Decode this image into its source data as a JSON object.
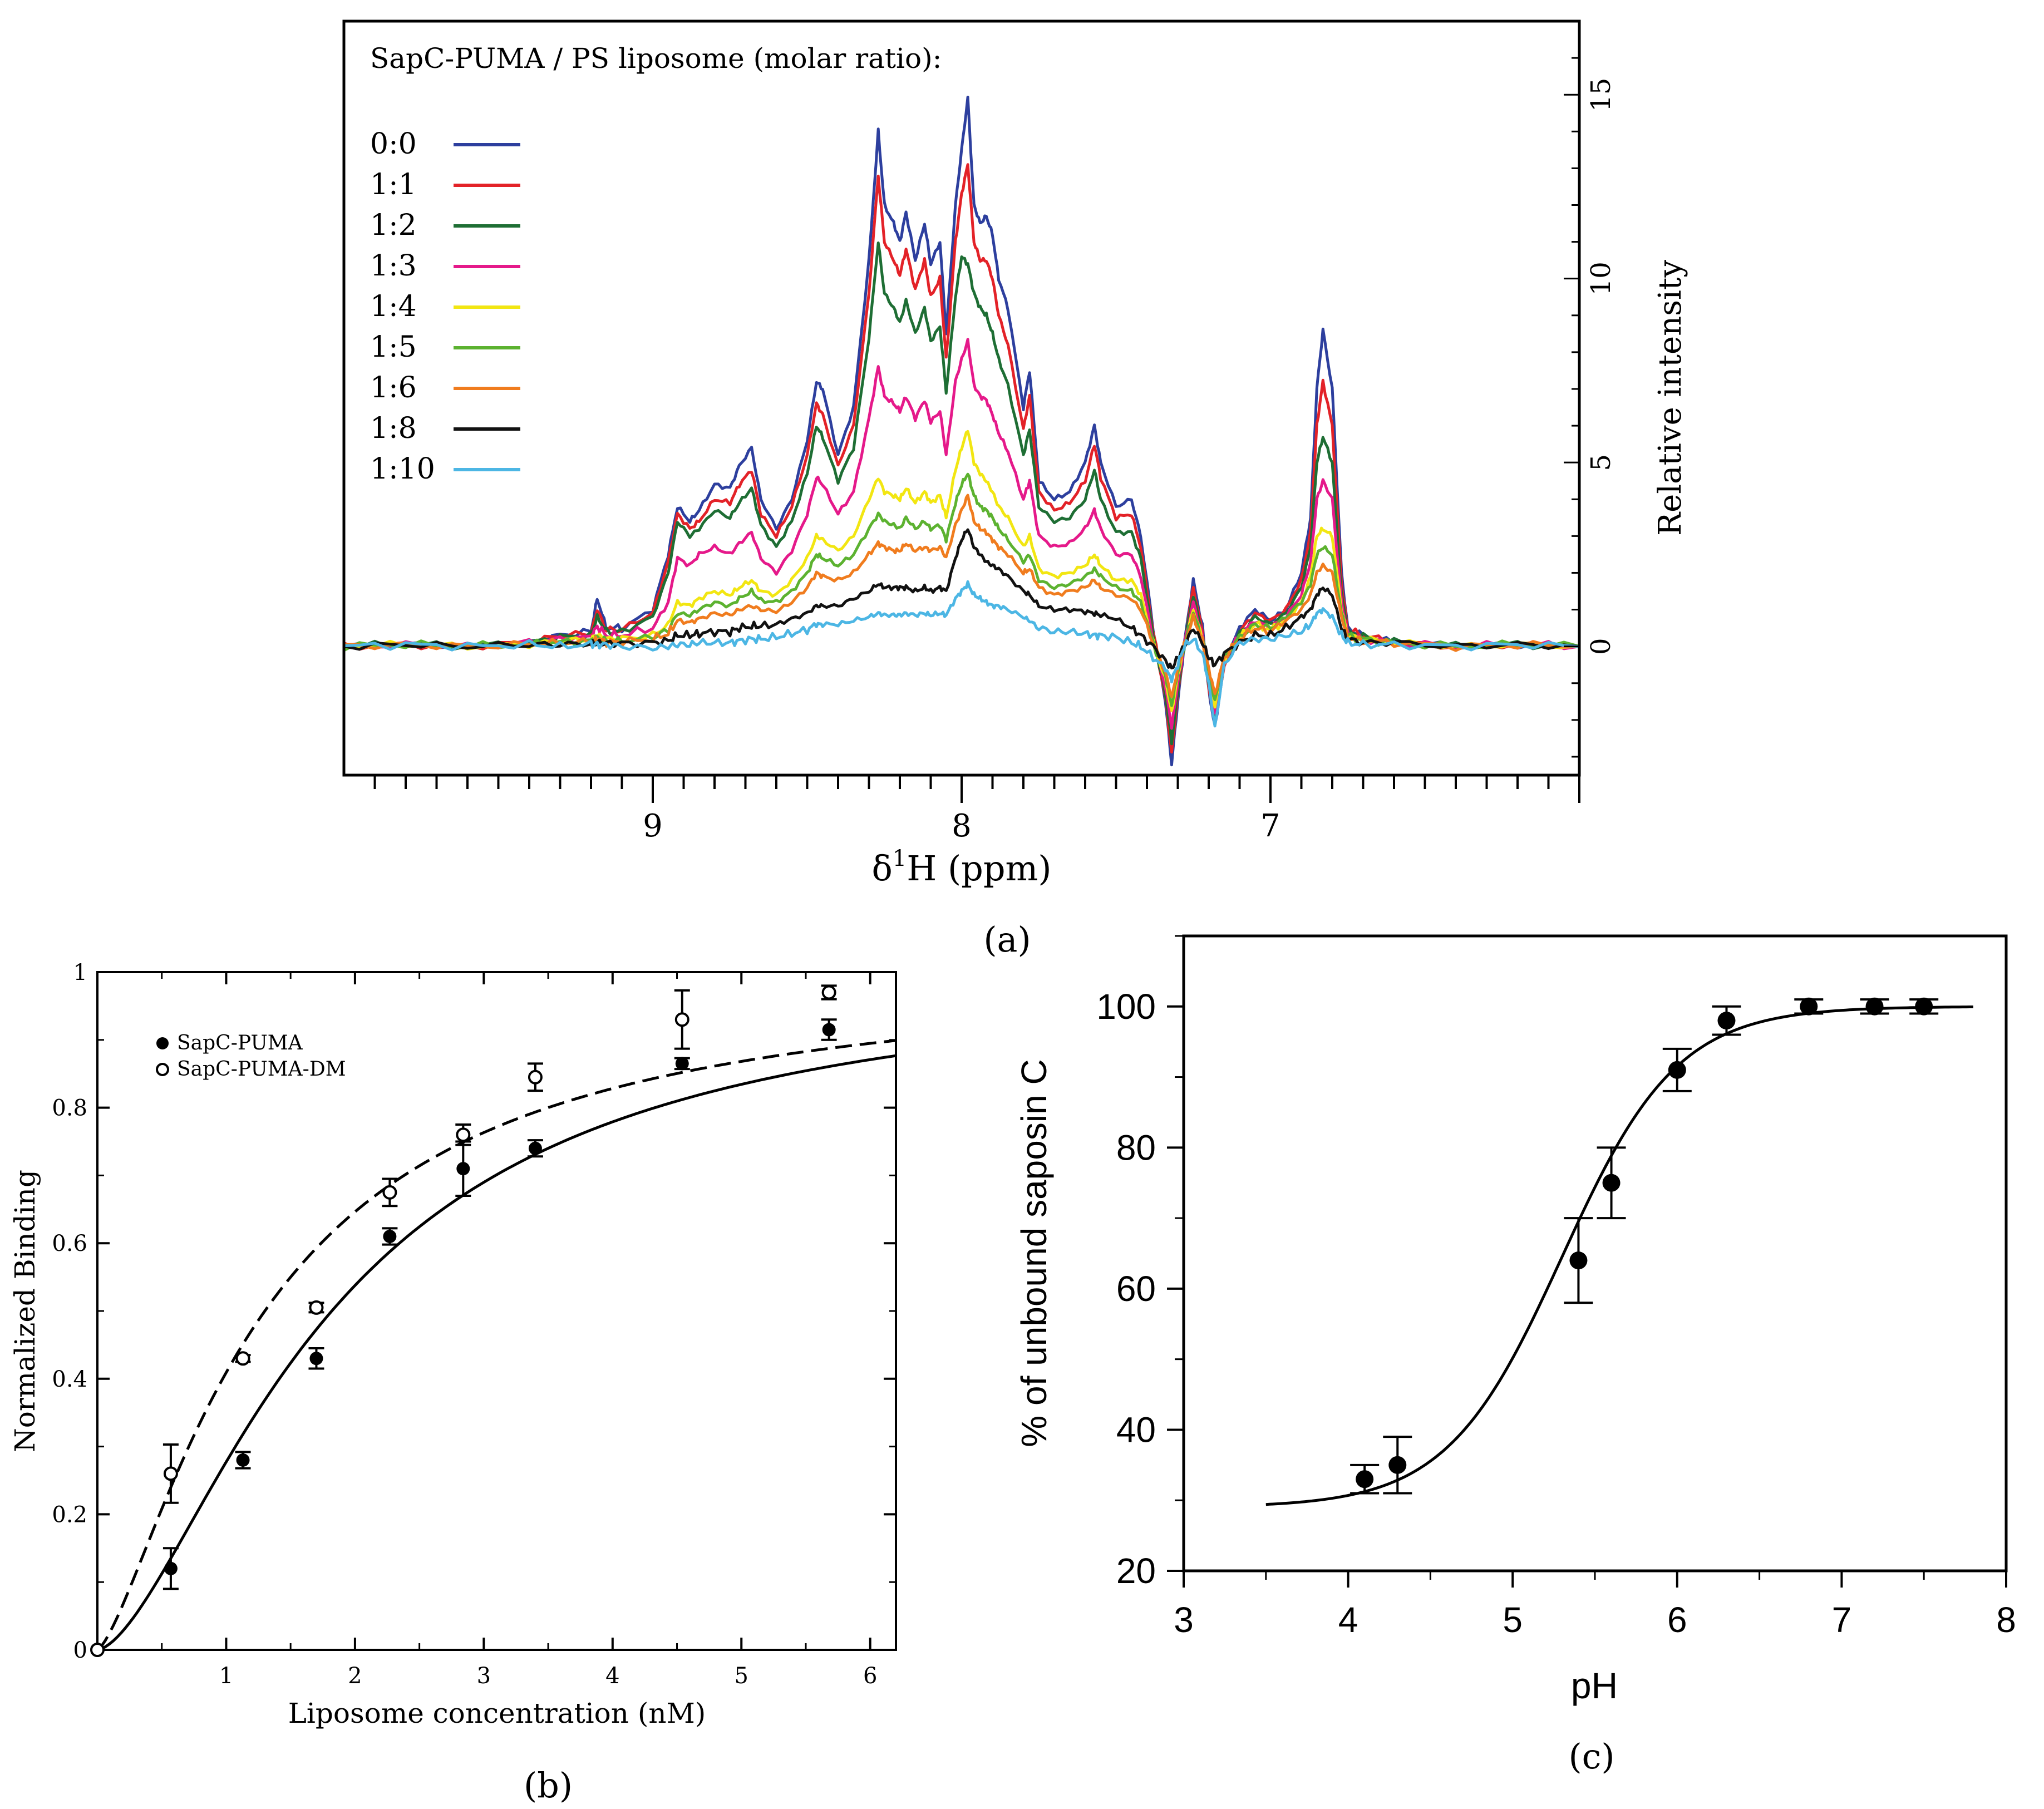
{
  "panel_a": {
    "caption": "(a)",
    "legend_title": "SapC-PUMA /  PS liposome (molar ratio):",
    "chart_data": {
      "type": "line",
      "xlabel_main": "δ",
      "xlabel_sup": "1",
      "xlabel_rest": "H (ppm)",
      "ylabel": "Relative intensity",
      "xlim": [
        10.0,
        6.0
      ],
      "ylim": [
        -3.5,
        17.0
      ],
      "xticks": [
        9,
        8,
        7
      ],
      "yticks": [
        0,
        5,
        10,
        15
      ],
      "x": [
        10.0,
        9.8,
        9.6,
        9.4,
        9.3,
        9.2,
        9.18,
        9.15,
        9.1,
        9.0,
        8.95,
        8.92,
        8.88,
        8.85,
        8.8,
        8.75,
        8.72,
        8.68,
        8.65,
        8.6,
        8.55,
        8.5,
        8.47,
        8.45,
        8.4,
        8.35,
        8.3,
        8.27,
        8.25,
        8.22,
        8.2,
        8.18,
        8.15,
        8.12,
        8.1,
        8.07,
        8.05,
        8.02,
        8.0,
        7.98,
        7.96,
        7.94,
        7.92,
        7.9,
        7.88,
        7.85,
        7.8,
        7.78,
        7.75,
        7.7,
        7.65,
        7.6,
        7.57,
        7.55,
        7.5,
        7.45,
        7.42,
        7.38,
        7.34,
        7.32,
        7.3,
        7.28,
        7.25,
        7.22,
        7.2,
        7.18,
        7.15,
        7.1,
        7.05,
        7.0,
        6.95,
        6.9,
        6.87,
        6.85,
        6.83,
        6.8,
        6.77,
        6.75,
        6.7,
        6.6,
        6.4,
        6.2,
        6.0
      ],
      "series": [
        {
          "name": "0:0",
          "color": "#2d3f9e",
          "values": [
            0,
            0.05,
            0,
            0.1,
            0.3,
            0.4,
            1.3,
            0.5,
            0.5,
            1.0,
            2.5,
            3.8,
            3.4,
            3.7,
            4.4,
            4.3,
            4.9,
            5.4,
            4.0,
            3.2,
            4.0,
            5.6,
            7.2,
            7.0,
            5.2,
            6.5,
            10.5,
            14.0,
            12.0,
            11.5,
            11.0,
            11.8,
            10.5,
            11.5,
            10.4,
            11.0,
            8.5,
            12.0,
            13.5,
            14.9,
            12.0,
            11.5,
            11.7,
            11.2,
            10.0,
            9.2,
            6.5,
            7.5,
            4.5,
            4.0,
            4.2,
            5.0,
            6.0,
            5.0,
            3.8,
            4.0,
            3.0,
            0.5,
            -1.5,
            -3.2,
            -1.5,
            0.0,
            1.8,
            0.5,
            -1.2,
            -2.2,
            -0.5,
            0.5,
            1.0,
            0.7,
            1.0,
            2.0,
            3.5,
            7.0,
            8.6,
            7.0,
            2.0,
            0.5,
            0.3,
            0.1,
            0.0,
            0.05,
            0
          ]
        },
        {
          "name": "1:1",
          "color": "#e32228",
          "values": [
            0,
            0.05,
            0,
            0.1,
            0.3,
            0.35,
            1.0,
            0.45,
            0.45,
            0.9,
            2.3,
            3.6,
            3.2,
            3.4,
            4.0,
            3.9,
            4.4,
            4.8,
            3.6,
            3.0,
            3.8,
            5.2,
            6.6,
            6.3,
            4.9,
            6.0,
            9.6,
            12.8,
            11.0,
            10.5,
            10.1,
            10.8,
            9.7,
            10.5,
            9.5,
            10.0,
            7.8,
            11.0,
            12.3,
            13.1,
            11.0,
            10.5,
            10.5,
            10.0,
            9.0,
            8.2,
            5.9,
            6.8,
            4.2,
            3.7,
            3.9,
            4.5,
            5.5,
            4.6,
            3.5,
            3.6,
            2.7,
            0.4,
            -1.4,
            -2.9,
            -1.3,
            0.0,
            1.6,
            0.4,
            -1.1,
            -2.1,
            -0.5,
            0.4,
            0.9,
            0.7,
            1.0,
            1.8,
            3.1,
            6.0,
            7.2,
            6.0,
            1.7,
            0.45,
            0.3,
            0.1,
            0.0,
            0.05,
            0
          ]
        },
        {
          "name": "1:2",
          "color": "#1e6e34",
          "values": [
            0,
            0.05,
            0,
            0.1,
            0.25,
            0.3,
            0.8,
            0.4,
            0.4,
            0.8,
            2.0,
            3.4,
            3.0,
            3.2,
            3.7,
            3.5,
            3.9,
            4.3,
            3.3,
            2.7,
            3.4,
            4.7,
            6.0,
            5.7,
            4.5,
            5.4,
            8.4,
            11.0,
            9.6,
            9.2,
            8.8,
            9.4,
            8.5,
            9.2,
            8.3,
            8.7,
            6.9,
            9.5,
            10.6,
            10.4,
            9.6,
            9.2,
            9.0,
            8.5,
            7.8,
            7.1,
            5.2,
            5.9,
            3.8,
            3.4,
            3.5,
            4.0,
            4.8,
            4.0,
            3.1,
            3.1,
            2.4,
            0.3,
            -1.3,
            -2.6,
            -1.2,
            0.0,
            1.4,
            0.3,
            -1.0,
            -2.0,
            -0.5,
            0.35,
            0.8,
            0.6,
            0.9,
            1.6,
            2.7,
            5.0,
            5.7,
            5.0,
            1.4,
            0.4,
            0.25,
            0.1,
            0.0,
            0.05,
            0
          ]
        },
        {
          "name": "1:3",
          "color": "#e5198a",
          "values": [
            0,
            0.05,
            0,
            0.1,
            0.2,
            0.25,
            0.55,
            0.3,
            0.3,
            0.5,
            1.2,
            2.4,
            2.2,
            2.5,
            2.7,
            2.5,
            2.8,
            3.1,
            2.4,
            2.0,
            2.6,
            3.6,
            4.6,
            4.4,
            3.6,
            4.2,
            6.2,
            7.6,
            6.8,
            6.6,
            6.4,
            6.8,
            6.2,
            6.7,
            6.1,
            6.4,
            5.2,
            7.2,
            7.8,
            8.3,
            7.1,
            6.8,
            6.7,
            6.3,
            5.8,
            5.3,
            4.0,
            4.5,
            3.0,
            2.7,
            2.8,
            3.2,
            3.7,
            3.2,
            2.5,
            2.5,
            1.9,
            0.2,
            -1.1,
            -2.2,
            -1.0,
            0.0,
            1.2,
            0.25,
            -0.9,
            -1.8,
            -0.4,
            0.3,
            0.7,
            0.5,
            0.8,
            1.4,
            2.3,
            4.0,
            4.5,
            4.0,
            1.2,
            0.35,
            0.2,
            0.1,
            0.0,
            0.05,
            0
          ]
        },
        {
          "name": "1:4",
          "color": "#f2e612",
          "values": [
            0,
            0.05,
            0,
            0.05,
            0.15,
            0.2,
            0.3,
            0.2,
            0.2,
            0.3,
            0.6,
            1.2,
            1.1,
            1.3,
            1.5,
            1.4,
            1.6,
            1.8,
            1.5,
            1.4,
            1.8,
            2.4,
            3.0,
            2.9,
            2.6,
            3.0,
            4.0,
            4.6,
            4.2,
            4.1,
            4.0,
            4.3,
            3.9,
            4.2,
            3.9,
            4.1,
            3.5,
            4.8,
            5.4,
            5.9,
            5.0,
            4.7,
            4.5,
            4.2,
            3.8,
            3.5,
            2.7,
            3.0,
            2.1,
            1.9,
            2.0,
            2.2,
            2.5,
            2.2,
            1.8,
            1.8,
            1.4,
            0.1,
            -0.9,
            -1.8,
            -0.8,
            0.0,
            1.0,
            0.2,
            -0.8,
            -1.6,
            -0.4,
            0.25,
            0.6,
            0.45,
            0.7,
            1.2,
            1.9,
            3.0,
            3.2,
            3.0,
            1.0,
            0.3,
            0.2,
            0.1,
            0.0,
            0.05,
            0
          ]
        },
        {
          "name": "1:5",
          "color": "#5cb230",
          "values": [
            0,
            0.05,
            0,
            0.05,
            0.12,
            0.15,
            0.25,
            0.15,
            0.15,
            0.25,
            0.45,
            0.9,
            0.85,
            1.0,
            1.2,
            1.1,
            1.3,
            1.5,
            1.25,
            1.2,
            1.5,
            2.0,
            2.5,
            2.4,
            2.2,
            2.5,
            3.2,
            3.6,
            3.4,
            3.3,
            3.2,
            3.5,
            3.2,
            3.4,
            3.2,
            3.3,
            2.9,
            3.9,
            4.4,
            4.7,
            4.1,
            3.8,
            3.7,
            3.5,
            3.2,
            2.9,
            2.3,
            2.5,
            1.8,
            1.6,
            1.7,
            1.9,
            2.1,
            1.9,
            1.6,
            1.5,
            1.2,
            0.1,
            -0.8,
            -1.6,
            -0.7,
            0.0,
            0.9,
            0.2,
            -0.7,
            -1.5,
            -0.3,
            0.25,
            0.6,
            0.5,
            0.8,
            1.2,
            1.7,
            2.5,
            2.7,
            2.5,
            0.9,
            0.3,
            0.2,
            0.1,
            0.0,
            0.05,
            0
          ]
        },
        {
          "name": "1:6",
          "color": "#f07c1e",
          "values": [
            0,
            0.05,
            0,
            0.05,
            0.1,
            0.12,
            0.2,
            0.12,
            0.12,
            0.2,
            0.35,
            0.7,
            0.65,
            0.75,
            0.9,
            0.85,
            1.0,
            1.1,
            1.0,
            0.95,
            1.2,
            1.6,
            2.0,
            1.9,
            1.8,
            2.0,
            2.5,
            2.8,
            2.7,
            2.6,
            2.6,
            2.8,
            2.6,
            2.7,
            2.6,
            2.7,
            2.4,
            3.3,
            3.7,
            4.1,
            3.4,
            3.2,
            3.1,
            2.9,
            2.7,
            2.5,
            2.0,
            2.1,
            1.6,
            1.4,
            1.5,
            1.6,
            1.8,
            1.6,
            1.4,
            1.3,
            1.0,
            0.1,
            -0.7,
            -1.4,
            -0.6,
            0.0,
            0.8,
            0.15,
            -0.6,
            -1.3,
            -0.3,
            0.2,
            0.5,
            0.4,
            0.7,
            1.0,
            1.4,
            2.0,
            2.2,
            2.0,
            0.8,
            0.25,
            0.15,
            0.1,
            0.0,
            0.05,
            0
          ]
        },
        {
          "name": "1:8",
          "color": "#111111",
          "values": [
            0,
            0.05,
            0,
            0.05,
            0.05,
            0.08,
            0.1,
            0.08,
            0.08,
            0.1,
            0.15,
            0.3,
            0.3,
            0.35,
            0.4,
            0.4,
            0.5,
            0.55,
            0.55,
            0.6,
            0.75,
            0.9,
            1.1,
            1.1,
            1.1,
            1.3,
            1.5,
            1.7,
            1.6,
            1.6,
            1.6,
            1.6,
            1.5,
            1.6,
            1.5,
            1.6,
            1.5,
            2.4,
            2.9,
            3.2,
            2.7,
            2.5,
            2.3,
            2.2,
            2.1,
            1.9,
            1.5,
            1.4,
            1.1,
            1.0,
            1.0,
            0.95,
            0.9,
            0.85,
            0.75,
            0.5,
            0.3,
            0.0,
            -0.4,
            -0.6,
            -0.3,
            0.0,
            0.5,
            0.1,
            -0.3,
            -0.5,
            -0.2,
            0.1,
            0.3,
            0.3,
            0.5,
            0.8,
            1.0,
            1.4,
            1.6,
            1.4,
            0.5,
            0.2,
            0.1,
            0.1,
            0.0,
            0.05,
            0
          ]
        },
        {
          "name": "1:10",
          "color": "#4cb6e4",
          "values": [
            0,
            0.05,
            0,
            0.05,
            0.0,
            0.05,
            0.05,
            0.05,
            0.0,
            -0.05,
            0.0,
            0.05,
            0.05,
            0.1,
            0.1,
            0.1,
            0.15,
            0.2,
            0.2,
            0.25,
            0.35,
            0.45,
            0.6,
            0.6,
            0.6,
            0.7,
            0.8,
            0.9,
            0.85,
            0.85,
            0.85,
            0.9,
            0.85,
            0.9,
            0.85,
            0.9,
            0.85,
            1.3,
            1.5,
            1.7,
            1.4,
            1.3,
            1.2,
            1.1,
            1.1,
            1.0,
            0.8,
            0.7,
            0.5,
            0.4,
            0.4,
            0.35,
            0.3,
            0.3,
            0.25,
            0.1,
            0.0,
            -0.3,
            -0.6,
            -0.9,
            -0.5,
            0.0,
            0.2,
            -0.2,
            -1.0,
            -2.2,
            -0.5,
            0.1,
            0.2,
            0.2,
            0.3,
            0.4,
            0.6,
            0.9,
            1.0,
            0.8,
            0.3,
            0.1,
            0.05,
            0.05,
            0.0,
            0.05,
            0
          ]
        }
      ]
    }
  },
  "panel_b": {
    "caption": "(b)",
    "chart_data": {
      "type": "scatter",
      "xlabel": "Liposome concentration (nM)",
      "ylabel": "Normalized Binding",
      "xlim": [
        0,
        6.2
      ],
      "ylim": [
        0,
        1
      ],
      "xticks": [
        1,
        2,
        3,
        4,
        5,
        6
      ],
      "yticks": [
        0,
        0.2,
        0.4,
        0.6,
        0.8,
        1
      ],
      "ytick_labels": [
        "0",
        "0.2",
        "0.4",
        "0.6",
        "0.8",
        "1"
      ],
      "legend_position": "top-left",
      "series": [
        {
          "name": "SapC-PUMA",
          "marker": "filled-circle",
          "line": "solid",
          "fit": {
            "kd": 1.82,
            "n": 1.6
          },
          "points": [
            {
              "x": 0,
              "y": 0,
              "err": 0
            },
            {
              "x": 0.57,
              "y": 0.12,
              "err": 0.03
            },
            {
              "x": 1.13,
              "y": 0.28,
              "err": 0.012
            },
            {
              "x": 1.7,
              "y": 0.43,
              "err": 0.015
            },
            {
              "x": 2.27,
              "y": 0.61,
              "err": 0.012
            },
            {
              "x": 2.84,
              "y": 0.71,
              "err": 0.04
            },
            {
              "x": 3.4,
              "y": 0.74,
              "err": 0.012
            },
            {
              "x": 4.54,
              "y": 0.865,
              "err": 0.008
            },
            {
              "x": 5.68,
              "y": 0.915,
              "err": 0.015
            }
          ]
        },
        {
          "name": "SapC-PUMA-DM",
          "marker": "open-circle",
          "line": "dashed",
          "fit": {
            "kd": 1.3,
            "n": 1.4
          },
          "points": [
            {
              "x": 0,
              "y": 0,
              "err": 0
            },
            {
              "x": 0.57,
              "y": 0.26,
              "err": 0.043
            },
            {
              "x": 1.13,
              "y": 0.43,
              "err": 0.005
            },
            {
              "x": 1.7,
              "y": 0.505,
              "err": 0.007
            },
            {
              "x": 2.27,
              "y": 0.675,
              "err": 0.02
            },
            {
              "x": 2.84,
              "y": 0.76,
              "err": 0.015
            },
            {
              "x": 3.4,
              "y": 0.845,
              "err": 0.02
            },
            {
              "x": 4.54,
              "y": 0.93,
              "err": 0.043
            },
            {
              "x": 5.68,
              "y": 0.97,
              "err": 0.01
            }
          ]
        }
      ]
    }
  },
  "panel_c": {
    "caption": "(c)",
    "chart_data": {
      "type": "scatter",
      "xlabel": "pH",
      "ylabel": "% of unbound saposin C",
      "xlim": [
        3,
        8
      ],
      "ylim": [
        20,
        110
      ],
      "xticks": [
        3,
        4,
        5,
        6,
        7,
        8
      ],
      "yticks": [
        20,
        40,
        60,
        80,
        100
      ],
      "fit": {
        "bottom": 29,
        "top": 100,
        "pka": 5.3,
        "slope": 0.35,
        "xmin": 3.5,
        "xmax": 7.8
      },
      "points": [
        {
          "x": 4.1,
          "y": 33,
          "err": 2
        },
        {
          "x": 4.3,
          "y": 35,
          "err": 4
        },
        {
          "x": 5.4,
          "y": 64,
          "err": 6
        },
        {
          "x": 5.6,
          "y": 75,
          "err": 5
        },
        {
          "x": 6.0,
          "y": 91,
          "err": 3
        },
        {
          "x": 6.3,
          "y": 98,
          "err": 2
        },
        {
          "x": 6.8,
          "y": 100,
          "err": 1
        },
        {
          "x": 7.2,
          "y": 100,
          "err": 1
        },
        {
          "x": 7.5,
          "y": 100,
          "err": 1
        }
      ]
    }
  }
}
